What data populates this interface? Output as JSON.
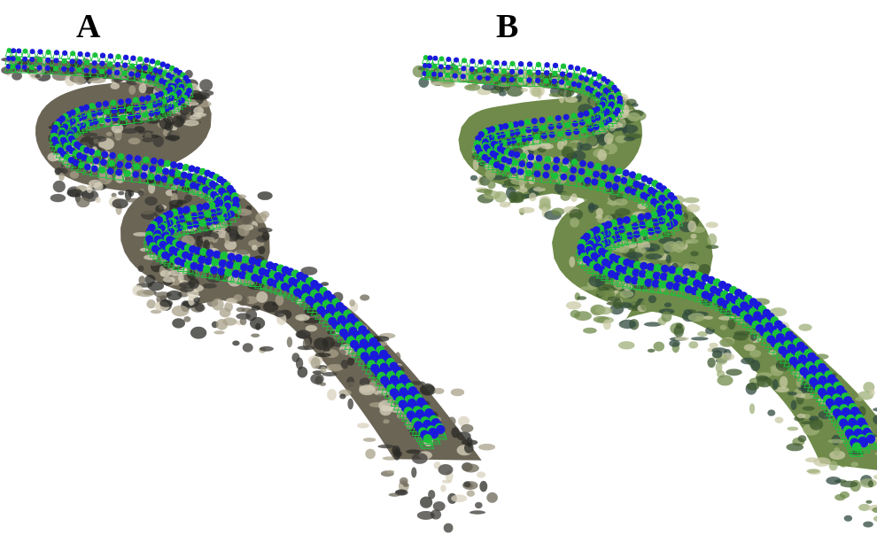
{
  "panels": [
    {
      "label": "A",
      "terrain_palette": [
        "#3b3a36",
        "#6b6556",
        "#a8a08a",
        "#d8d2bd",
        "#2a2926"
      ]
    },
    {
      "label": "B",
      "terrain_palette": [
        "#3e5a2e",
        "#6f8a4a",
        "#9fb07a",
        "#c9c9a6",
        "#2f4a3f"
      ]
    }
  ],
  "colors": {
    "camera_top": "#1a1adc",
    "camera_frame": "#19c23a",
    "background": "#ffffff"
  }
}
